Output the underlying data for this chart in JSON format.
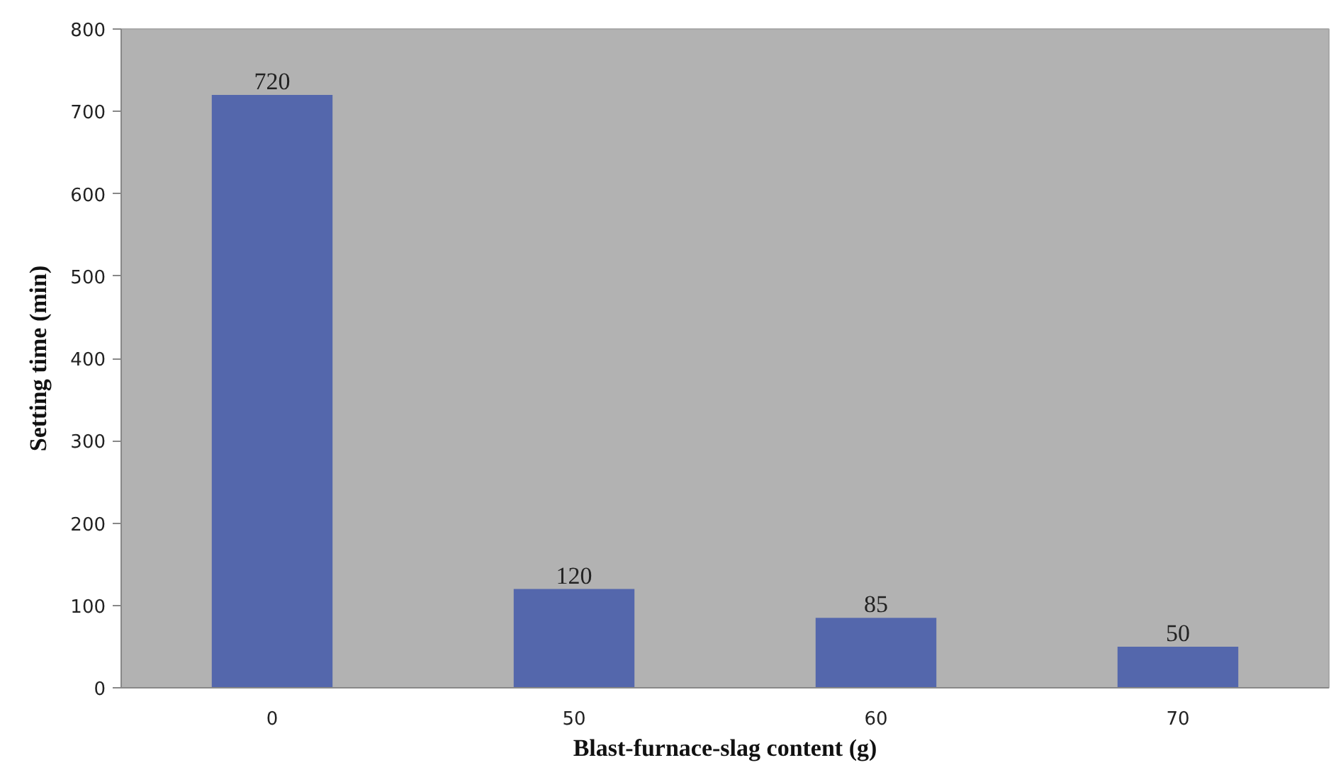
{
  "chart_data": {
    "type": "bar",
    "xlabel": "Blast-furnace-slag content (g)",
    "ylabel": "Setting time (min)",
    "categories": [
      "0",
      "50",
      "60",
      "70"
    ],
    "values": [
      720,
      120,
      85,
      50
    ],
    "color": "#5467ac",
    "ylim": [
      0,
      800
    ],
    "yticks": [
      0,
      100,
      200,
      300,
      400,
      500,
      600,
      700,
      800
    ],
    "data_labels": true
  }
}
